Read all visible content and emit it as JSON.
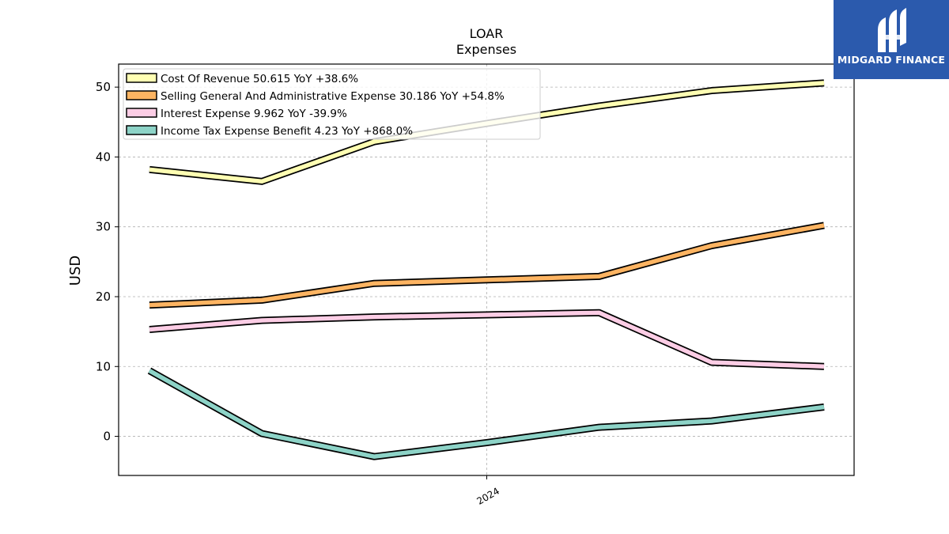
{
  "chart_data": {
    "type": "line",
    "title": "LOAR",
    "subtitle": "Expenses",
    "ylabel": "USD",
    "xlabel": "",
    "ylim": [
      -5.6,
      53.3
    ],
    "yticks": [
      0,
      10,
      20,
      30,
      40,
      50
    ],
    "x": [
      0,
      1,
      2,
      3,
      4,
      5,
      6
    ],
    "xticks": [
      {
        "pos": 3,
        "label": "2024"
      }
    ],
    "grid": true,
    "legend_position": "top-left",
    "series": [
      {
        "name": "Cost Of Revenue  50.615 YoY +38.6%",
        "color": "#ffffb3",
        "values": [
          38.2,
          36.5,
          42.2,
          44.8,
          47.3,
          49.5,
          50.6
        ]
      },
      {
        "name": "Selling General And Administrative Expense  30.186 YoY +54.8%",
        "color": "#fdb462",
        "values": [
          18.8,
          19.5,
          21.9,
          22.4,
          22.9,
          27.3,
          30.2
        ]
      },
      {
        "name": "Interest Expense  9.962 YoY -39.9%",
        "color": "#fccde5",
        "values": [
          15.3,
          16.6,
          17.1,
          17.4,
          17.7,
          10.6,
          10.0
        ]
      },
      {
        "name": "Income Tax Expense Benefit  4.23 YoY +868.0%",
        "color": "#8dd3c7",
        "values": [
          9.4,
          0.4,
          -2.9,
          -0.9,
          1.3,
          2.2,
          4.2
        ]
      }
    ]
  },
  "logo": {
    "text": "MIDGARD FINANCE",
    "color": "#2b5aad"
  }
}
